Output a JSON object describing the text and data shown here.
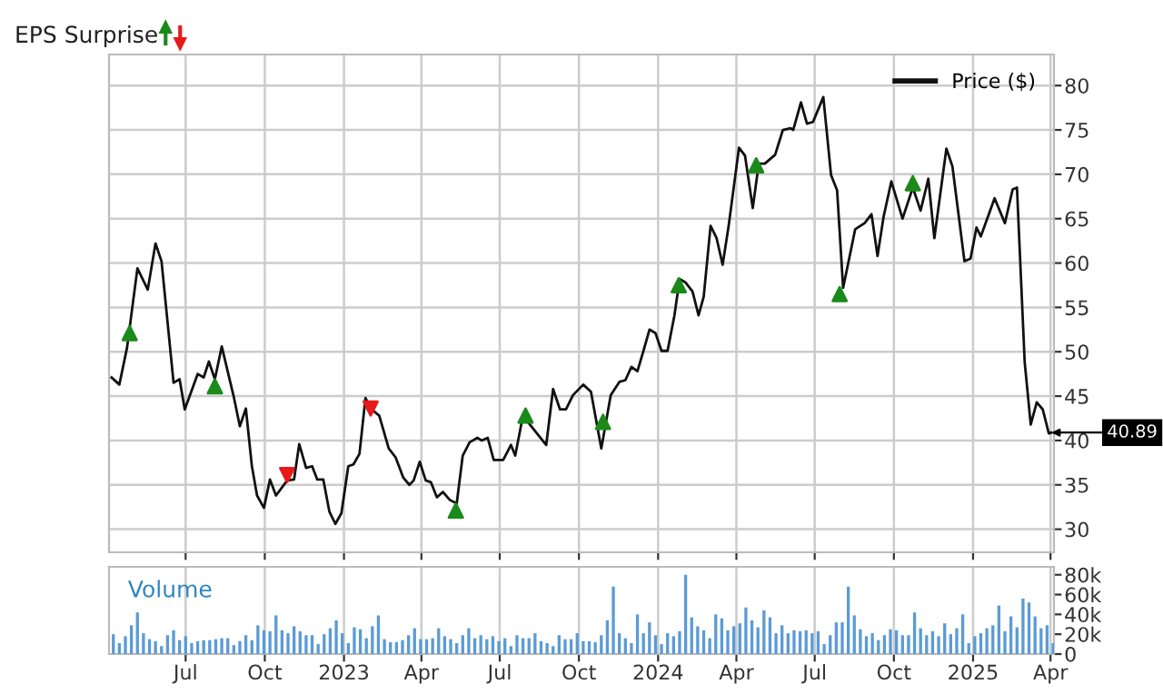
{
  "chart_data": [
    {
      "type": "line",
      "title": "EPS Surprise",
      "legend": "top right",
      "grid": true,
      "tick_labels": "y",
      "xlim": [
        "2022-04-03",
        "2025-04-05"
      ],
      "xticks": [
        {
          "value": "2022-07-01",
          "label": null
        },
        {
          "value": "2022-10-01",
          "label": null
        },
        {
          "value": "2023-01-01",
          "label": null
        },
        {
          "value": "2023-04-01",
          "label": null
        },
        {
          "value": "2023-07-01",
          "label": null
        },
        {
          "value": "2023-10-01",
          "label": null
        },
        {
          "value": "2024-01-01",
          "label": null
        },
        {
          "value": "2024-04-01",
          "label": null
        },
        {
          "value": "2024-07-01",
          "label": null
        },
        {
          "value": "2024-10-01",
          "label": null
        },
        {
          "value": "2025-01-01",
          "label": null
        },
        {
          "value": "2025-04-01",
          "label": null
        }
      ],
      "ylim": [
        27.4,
        83.5
      ],
      "yticks": [
        30,
        35,
        40,
        45,
        50,
        55,
        60,
        65,
        70,
        75,
        80
      ],
      "annotations": [
        {
          "text": "40.89",
          "x": "2025-04-02",
          "y": 40.89
        }
      ],
      "series": [
        {
          "name": "Price ($)",
          "type": "line",
          "color": "#111111",
          "x": [
            "2022-04-06",
            "2022-04-15",
            "2022-04-24",
            "2022-05-06",
            "2022-05-18",
            "2022-05-27",
            "2022-06-03",
            "2022-06-17",
            "2022-06-24",
            "2022-06-30",
            "2022-07-15",
            "2022-07-22",
            "2022-07-28",
            "2022-08-04",
            "2022-08-12",
            "2022-08-26",
            "2022-09-02",
            "2022-09-09",
            "2022-09-16",
            "2022-09-22",
            "2022-09-30",
            "2022-10-07",
            "2022-10-14",
            "2022-10-27",
            "2022-11-04",
            "2022-11-10",
            "2022-11-18",
            "2022-11-25",
            "2022-12-01",
            "2022-12-08",
            "2022-12-15",
            "2022-12-22",
            "2022-12-29",
            "2023-01-06",
            "2023-01-12",
            "2023-01-19",
            "2023-01-26",
            "2023-02-01",
            "2023-02-11",
            "2023-02-22",
            "2023-03-02",
            "2023-03-11",
            "2023-03-18",
            "2023-03-23",
            "2023-03-30",
            "2023-04-06",
            "2023-04-12",
            "2023-04-19",
            "2023-04-26",
            "2023-05-04",
            "2023-05-12",
            "2023-05-19",
            "2023-05-27",
            "2023-06-05",
            "2023-06-10",
            "2023-06-17",
            "2023-06-24",
            "2023-07-05",
            "2023-07-14",
            "2023-07-19",
            "2023-07-28",
            "2023-08-09",
            "2023-08-24",
            "2023-09-01",
            "2023-09-09",
            "2023-09-16",
            "2023-09-24",
            "2023-10-06",
            "2023-10-15",
            "2023-10-27",
            "2023-11-07",
            "2023-11-17",
            "2023-11-24",
            "2023-12-01",
            "2023-12-08",
            "2023-12-15",
            "2023-12-22",
            "2023-12-29",
            "2024-01-05",
            "2024-01-12",
            "2024-01-20",
            "2024-01-26",
            "2024-02-02",
            "2024-02-10",
            "2024-02-17",
            "2024-02-23",
            "2024-03-02",
            "2024-03-09",
            "2024-03-16",
            "2024-03-23",
            "2024-04-04",
            "2024-04-11",
            "2024-04-20",
            "2024-04-27",
            "2024-05-04",
            "2024-05-16",
            "2024-05-25",
            "2024-06-03",
            "2024-06-06",
            "2024-06-15",
            "2024-06-22",
            "2024-06-29",
            "2024-07-11",
            "2024-07-20",
            "2024-07-27",
            "2024-08-03",
            "2024-08-10",
            "2024-08-17",
            "2024-08-28",
            "2024-09-05",
            "2024-09-12",
            "2024-09-19",
            "2024-09-28",
            "2024-10-11",
            "2024-10-23",
            "2024-11-01",
            "2024-11-10",
            "2024-11-17",
            "2024-12-01",
            "2024-12-08",
            "2024-12-22",
            "2024-12-29",
            "2025-01-05",
            "2025-01-10",
            "2025-01-26",
            "2025-02-07",
            "2025-02-16",
            "2025-02-21",
            "2025-03-02",
            "2025-03-09",
            "2025-03-16",
            "2025-03-23",
            "2025-03-30",
            "2025-04-02"
          ],
          "values": [
            47.1,
            46.3,
            50.5,
            59.4,
            57.0,
            62.2,
            60.2,
            46.5,
            46.9,
            43.5,
            47.5,
            47.1,
            48.9,
            46.9,
            50.6,
            44.9,
            41.6,
            43.6,
            37.1,
            33.8,
            32.4,
            35.6,
            33.8,
            35.5,
            35.6,
            39.6,
            36.9,
            37.1,
            35.6,
            35.6,
            32.0,
            30.6,
            31.8,
            37.1,
            37.3,
            38.5,
            44.8,
            43.6,
            42.8,
            39.1,
            38.1,
            35.8,
            35.0,
            35.5,
            37.6,
            35.5,
            35.3,
            33.6,
            34.2,
            33.3,
            32.9,
            38.3,
            39.8,
            40.3,
            40.0,
            40.3,
            37.8,
            37.8,
            39.5,
            38.3,
            42.8,
            41.3,
            39.5,
            45.8,
            43.5,
            43.5,
            45.1,
            46.3,
            45.5,
            39.1,
            45.1,
            46.6,
            46.8,
            48.3,
            47.8,
            50.1,
            52.5,
            52.1,
            50.1,
            50.1,
            54.1,
            58.2,
            57.8,
            56.8,
            54.1,
            56.2,
            64.2,
            62.8,
            59.8,
            64.2,
            73.0,
            72.1,
            66.2,
            71.2,
            71.2,
            72.2,
            75.0,
            75.2,
            75.0,
            78.1,
            75.7,
            75.9,
            78.7,
            69.9,
            68.2,
            57.2,
            60.5,
            63.8,
            64.5,
            65.5,
            60.8,
            65.2,
            69.2,
            65.0,
            68.5,
            65.9,
            69.5,
            62.8,
            72.9,
            70.9,
            60.2,
            60.5,
            64.0,
            63.0,
            67.3,
            64.5,
            68.3,
            68.5,
            48.8,
            41.8,
            44.3,
            43.5,
            40.8,
            40.89
          ]
        },
        {
          "type": "scatter",
          "marker": "triangle",
          "color": "#1a8a1a",
          "x": [
            "2022-04-27",
            "2022-08-04",
            "2023-05-11",
            "2023-07-31",
            "2023-10-29",
            "2024-01-25",
            "2024-04-24",
            "2024-07-30",
            "2024-10-23"
          ],
          "values": [
            52.1,
            46.1,
            32.1,
            42.8,
            42.1,
            57.5,
            71.0,
            56.5,
            69.0
          ]
        },
        {
          "type": "scatter",
          "marker": "triangle_down",
          "color": "#e8191b",
          "x": [
            "2022-10-27",
            "2023-02-01"
          ],
          "values": [
            36.1,
            43.6
          ]
        }
      ]
    },
    {
      "type": "bar",
      "title": "Volume",
      "grid": "x",
      "xlim": [
        "2022-04-03",
        "2025-04-05"
      ],
      "xticks": [
        {
          "value": "2022-07-01",
          "label": "Jul"
        },
        {
          "value": "2022-10-01",
          "label": "Oct"
        },
        {
          "value": "2023-01-01",
          "label": "2023"
        },
        {
          "value": "2023-04-01",
          "label": "Apr"
        },
        {
          "value": "2023-07-01",
          "label": "Jul"
        },
        {
          "value": "2023-10-01",
          "label": "Oct"
        },
        {
          "value": "2024-01-01",
          "label": "2024"
        },
        {
          "value": "2024-04-01",
          "label": "Apr"
        },
        {
          "value": "2024-07-01",
          "label": "Jul"
        },
        {
          "value": "2024-10-01",
          "label": "Oct"
        },
        {
          "value": "2025-01-01",
          "label": "2025"
        },
        {
          "value": "2025-04-01",
          "label": "Apr"
        }
      ],
      "ylim": [
        0,
        88
      ],
      "yticks": [
        0,
        {
          "value": 20,
          "label": "20k"
        },
        {
          "value": 40,
          "label": "40k"
        },
        {
          "value": 60,
          "label": "60k"
        },
        {
          "value": 80,
          "label": "80k"
        }
      ],
      "series": [
        {
          "color": "#5b9bd5",
          "x": [
            "2022-04-08",
            "2022-04-15",
            "2022-04-22",
            "2022-04-29",
            "2022-05-06",
            "2022-05-13",
            "2022-05-20",
            "2022-05-27",
            "2022-06-03",
            "2022-06-10",
            "2022-06-17",
            "2022-06-24",
            "2022-07-01",
            "2022-07-08",
            "2022-07-15",
            "2022-07-22",
            "2022-07-29",
            "2022-08-05",
            "2022-08-12",
            "2022-08-19",
            "2022-08-26",
            "2022-09-02",
            "2022-09-09",
            "2022-09-16",
            "2022-09-23",
            "2022-09-30",
            "2022-10-07",
            "2022-10-14",
            "2022-10-21",
            "2022-10-28",
            "2022-11-04",
            "2022-11-11",
            "2022-11-18",
            "2022-11-25",
            "2022-12-02",
            "2022-12-09",
            "2022-12-16",
            "2022-12-23",
            "2022-12-30",
            "2023-01-06",
            "2023-01-13",
            "2023-01-20",
            "2023-01-27",
            "2023-02-03",
            "2023-02-10",
            "2023-02-17",
            "2023-02-24",
            "2023-03-03",
            "2023-03-10",
            "2023-03-17",
            "2023-03-24",
            "2023-03-31",
            "2023-04-07",
            "2023-04-14",
            "2023-04-21",
            "2023-04-28",
            "2023-05-05",
            "2023-05-12",
            "2023-05-19",
            "2023-05-26",
            "2023-06-02",
            "2023-06-09",
            "2023-06-16",
            "2023-06-23",
            "2023-06-30",
            "2023-07-07",
            "2023-07-14",
            "2023-07-21",
            "2023-07-28",
            "2023-08-04",
            "2023-08-11",
            "2023-08-18",
            "2023-08-25",
            "2023-09-01",
            "2023-09-08",
            "2023-09-15",
            "2023-09-22",
            "2023-09-29",
            "2023-10-06",
            "2023-10-13",
            "2023-10-20",
            "2023-10-27",
            "2023-11-03",
            "2023-11-10",
            "2023-11-17",
            "2023-11-24",
            "2023-12-01",
            "2023-12-08",
            "2023-12-15",
            "2023-12-22",
            "2023-12-29",
            "2024-01-05",
            "2024-01-12",
            "2024-01-19",
            "2024-01-26",
            "2024-02-02",
            "2024-02-09",
            "2024-02-16",
            "2024-02-23",
            "2024-03-01",
            "2024-03-08",
            "2024-03-15",
            "2024-03-22",
            "2024-03-29",
            "2024-04-05",
            "2024-04-12",
            "2024-04-19",
            "2024-04-26",
            "2024-05-03",
            "2024-05-10",
            "2024-05-17",
            "2024-05-24",
            "2024-05-31",
            "2024-06-07",
            "2024-06-14",
            "2024-06-21",
            "2024-06-28",
            "2024-07-05",
            "2024-07-12",
            "2024-07-19",
            "2024-07-26",
            "2024-08-02",
            "2024-08-09",
            "2024-08-16",
            "2024-08-23",
            "2024-08-30",
            "2024-09-06",
            "2024-09-13",
            "2024-09-20",
            "2024-09-27",
            "2024-10-04",
            "2024-10-11",
            "2024-10-18",
            "2024-10-25",
            "2024-11-01",
            "2024-11-08",
            "2024-11-15",
            "2024-11-22",
            "2024-11-29",
            "2024-12-06",
            "2024-12-13",
            "2024-12-20",
            "2024-12-27",
            "2025-01-03",
            "2025-01-10",
            "2025-01-17",
            "2025-01-24",
            "2025-01-31",
            "2025-02-07",
            "2025-02-14",
            "2025-02-21",
            "2025-02-28",
            "2025-03-07",
            "2025-03-14",
            "2025-03-21",
            "2025-03-28",
            "2025-04-04"
          ],
          "values": [
            20,
            11,
            18,
            29,
            42,
            21,
            15,
            13,
            8,
            19,
            24,
            14,
            18,
            11,
            13,
            14,
            14,
            15,
            16,
            16,
            9,
            13,
            19,
            14,
            29,
            24,
            23,
            39,
            24,
            21,
            28,
            23,
            19,
            19,
            10,
            20,
            26,
            34,
            21,
            11,
            27,
            25,
            16,
            28,
            39,
            15,
            12,
            12,
            14,
            19,
            26,
            15,
            15,
            16,
            26,
            18,
            15,
            11,
            19,
            26,
            16,
            19,
            15,
            18,
            13,
            16,
            8,
            19,
            16,
            16,
            21,
            13,
            11,
            8,
            19,
            15,
            15,
            21,
            13,
            13,
            12,
            19,
            34,
            68,
            21,
            16,
            11,
            40,
            21,
            32,
            19,
            10,
            21,
            18,
            23,
            80,
            37,
            28,
            24,
            16,
            40,
            36,
            24,
            28,
            31,
            47,
            34,
            27,
            44,
            37,
            21,
            29,
            21,
            24,
            23,
            24,
            21,
            23,
            10,
            19,
            32,
            32,
            68,
            39,
            25,
            18,
            21,
            14,
            19,
            25,
            24,
            19,
            19,
            42,
            26,
            19,
            23,
            18,
            31,
            20,
            26,
            40,
            11,
            18,
            21,
            26,
            29,
            49,
            23,
            38,
            27,
            56,
            52,
            38,
            26,
            29,
            11
          ]
        }
      ]
    }
  ]
}
